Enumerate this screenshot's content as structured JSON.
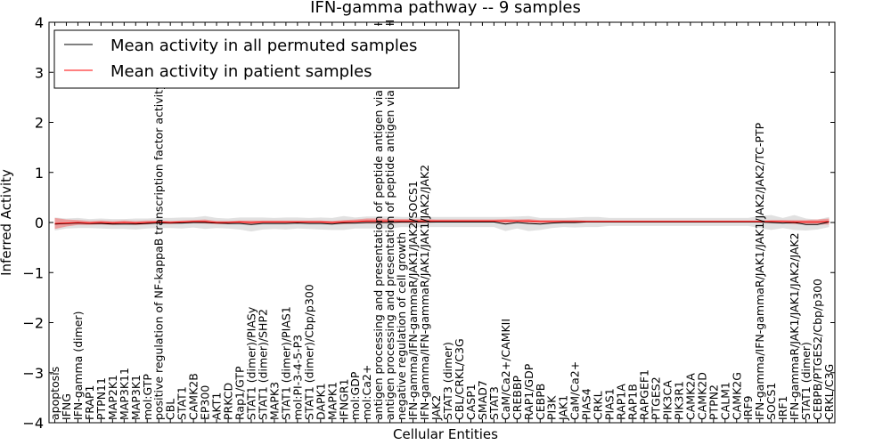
{
  "chart_data": {
    "type": "line",
    "title": "IFN-gamma pathway -- 9 samples",
    "xlabel": "Cellular Entities",
    "ylabel": "Inferred Activity",
    "ylim": [
      -4,
      4
    ],
    "yticks": [
      -4,
      -3,
      -2,
      -1,
      0,
      1,
      2,
      3,
      4
    ],
    "grid": false,
    "legend_position": "top-left",
    "categories": [
      "apoptosis",
      "IFNG",
      "IFN-gamma (dimer)",
      "FRAP1",
      "PTPN11",
      "MAP2K1",
      "MAP3K11",
      "MAP3K1",
      "mol:GTP",
      "positive regulation of NF-kappaB transcription factor activity",
      "CBL",
      "STAT1",
      "CAMK2B",
      "EP300",
      "AKT1",
      "PRKCD",
      "Rap1/GTP",
      "STAT1 (dimer)/PIASy",
      "STAT1 (dimer)/SHP2",
      "MAPK3",
      "STAT1 (dimer)/PIAS1",
      "mol:PI-3-4-5-P3",
      "STAT1 (dimer)/Cbp/p300",
      "DAPK1",
      "MAPK1",
      "IFNGR1",
      "mol:GDP",
      "mol:Ca2+",
      "antigen processing and presentation of peptide antigen via MHC class I",
      "antigen processing and presentation of peptide antigen via MHC class II",
      "negative regulation of cell growth",
      "IFN-gamma/IFN-gammaR/JAK1/JAK2/SOCS1",
      "IFN-gamma/IFN-gammaR/JAK1/JAK1/JAK2/JAK2",
      "JAK2",
      "STAT3 (dimer)",
      "CBL/CRKL/C3G",
      "CASP1",
      "SMAD7",
      "STAT3",
      "CaM/Ca2+/CAMKII",
      "CREBBP",
      "RAP1/GDP",
      "CEBPB",
      "PI3K",
      "JAK1",
      "CaM/Ca2+",
      "PIAS4",
      "CRKL",
      "PIAS1",
      "RAP1A",
      "RAP1B",
      "RAPGEF1",
      "PTGES2",
      "PIK3CA",
      "PIK3R1",
      "CAMK2A",
      "CAMK2D",
      "PTPN2",
      "CALM1",
      "CAMK2G",
      "IRF9",
      "IFN-gamma/IFN-gammaR/JAK1/JAK1/JAK2/JAK2/TC-PTP",
      "SOCS1",
      "IRF1",
      "IFN-gammaR/JAK1/JAK1/JAK2/JAK2",
      "STAT1 (dimer)",
      "CEBPB/PTGES2/Cbp/p300",
      "CRKL/C3G"
    ],
    "series": [
      {
        "name": "Mean activity in all permuted samples",
        "color": "#000000",
        "band_color": "#c8c8c8",
        "values": [
          -0.03,
          -0.02,
          -0.01,
          -0.02,
          -0.02,
          -0.03,
          -0.03,
          -0.03,
          -0.02,
          -0.01,
          -0.01,
          -0.01,
          0.0,
          0.0,
          -0.01,
          -0.02,
          -0.02,
          -0.04,
          -0.02,
          -0.02,
          -0.02,
          -0.01,
          -0.02,
          -0.02,
          -0.03,
          -0.01,
          -0.01,
          0.0,
          0.0,
          0.0,
          0.01,
          0.01,
          0.01,
          0.01,
          0.01,
          0.01,
          0.01,
          0.01,
          0.01,
          -0.03,
          0.0,
          -0.02,
          -0.03,
          -0.01,
          0.0,
          0.0,
          0.01,
          0.01,
          0.01,
          0.01,
          0.01,
          0.01,
          0.01,
          0.01,
          0.01,
          0.01,
          0.01,
          0.01,
          0.01,
          0.01,
          0.01,
          0.01,
          0.0,
          -0.01,
          0.0,
          -0.04,
          -0.04,
          0.01
        ],
        "spread": [
          0.13,
          0.1,
          0.1,
          0.09,
          0.1,
          0.1,
          0.1,
          0.11,
          0.1,
          0.1,
          0.1,
          0.11,
          0.1,
          0.13,
          0.1,
          0.1,
          0.12,
          0.14,
          0.12,
          0.11,
          0.12,
          0.11,
          0.11,
          0.12,
          0.12,
          0.14,
          0.11,
          0.12,
          0.12,
          0.12,
          0.1,
          0.1,
          0.1,
          0.1,
          0.1,
          0.1,
          0.1,
          0.1,
          0.1,
          0.14,
          0.12,
          0.15,
          0.12,
          0.1,
          0.09,
          0.1,
          0.1,
          0.1,
          0.08,
          0.08,
          0.08,
          0.08,
          0.08,
          0.08,
          0.08,
          0.08,
          0.08,
          0.08,
          0.08,
          0.08,
          0.08,
          0.12,
          0.15,
          0.1,
          0.15,
          0.12,
          0.1,
          0.1
        ]
      },
      {
        "name": "Mean activity in patient samples",
        "color": "#ff0000",
        "band_color": "#f08080",
        "values": [
          -0.02,
          -0.01,
          0.0,
          -0.01,
          0.0,
          -0.01,
          0.0,
          -0.01,
          0.0,
          0.01,
          0.0,
          0.01,
          0.02,
          0.02,
          0.0,
          0.0,
          0.01,
          0.0,
          0.01,
          0.01,
          0.01,
          0.01,
          0.01,
          0.01,
          0.0,
          0.01,
          0.02,
          0.03,
          0.03,
          0.03,
          0.03,
          0.03,
          0.03,
          0.03,
          0.03,
          0.03,
          0.03,
          0.03,
          0.03,
          0.03,
          0.03,
          0.03,
          0.02,
          0.02,
          0.02,
          0.02,
          0.02,
          0.02,
          0.02,
          0.02,
          0.02,
          0.02,
          0.02,
          0.02,
          0.02,
          0.02,
          0.02,
          0.02,
          0.02,
          0.02,
          0.02,
          0.02,
          0.02,
          0.02,
          0.01,
          0.01,
          0.01,
          0.02
        ],
        "spread": [
          0.11,
          0.07,
          0.05,
          0.04,
          0.04,
          0.04,
          0.04,
          0.04,
          0.04,
          0.03,
          0.03,
          0.03,
          0.03,
          0.04,
          0.03,
          0.03,
          0.03,
          0.04,
          0.03,
          0.03,
          0.03,
          0.03,
          0.03,
          0.03,
          0.03,
          0.04,
          0.04,
          0.05,
          0.05,
          0.04,
          0.04,
          0.04,
          0.04,
          0.03,
          0.03,
          0.03,
          0.03,
          0.03,
          0.03,
          0.04,
          0.03,
          0.04,
          0.03,
          0.03,
          0.03,
          0.03,
          0.02,
          0.02,
          0.02,
          0.02,
          0.02,
          0.02,
          0.02,
          0.02,
          0.02,
          0.02,
          0.02,
          0.02,
          0.02,
          0.02,
          0.02,
          0.02,
          0.03,
          0.03,
          0.04,
          0.04,
          0.05,
          0.06
        ]
      }
    ]
  }
}
